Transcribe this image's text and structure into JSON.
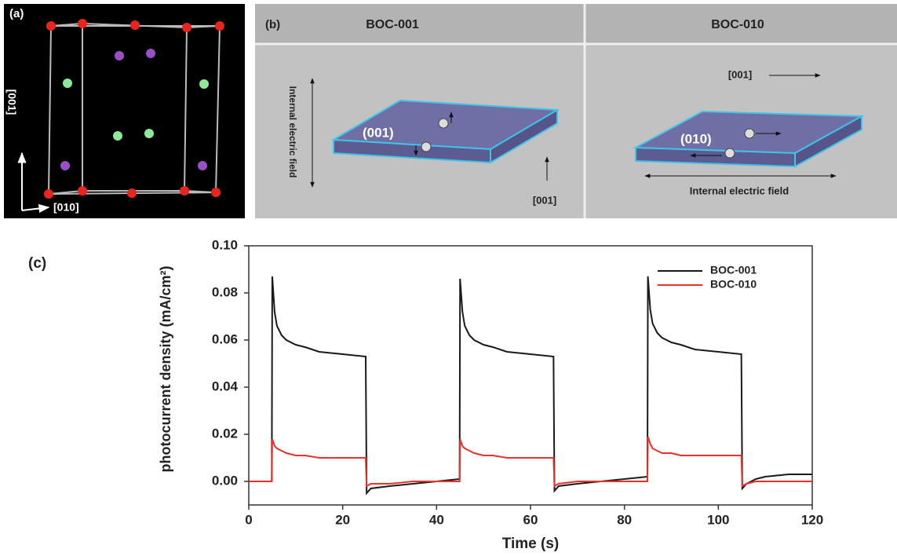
{
  "panel_a": {
    "label": "(a)",
    "axis_vertical": "[001]",
    "axis_horizontal": "[010]"
  },
  "panel_b": {
    "label": "(b)",
    "left_title": "BOC-001",
    "right_title": "BOC-010",
    "left_facet": "(001)",
    "left_field": "Internal electric field",
    "left_direction": "[001]",
    "right_facet": "(010)",
    "right_field": "Internal electric field",
    "right_direction": "[001]"
  },
  "chart_data": {
    "type": "line",
    "panel_label": "(c)",
    "x_label": "Time (s)",
    "y_label": "photocurrent density (mA/cm²)",
    "xlim": [
      0,
      120
    ],
    "xticks": [
      0,
      20,
      40,
      60,
      80,
      100,
      120
    ],
    "ylim": [
      -0.01,
      0.1
    ],
    "yticks": [
      {
        "value": 0,
        "label": "0.00"
      },
      0.02,
      0.04,
      0.06,
      0.08,
      {
        "value": 0.1,
        "label": "0.10"
      }
    ],
    "legend": "upper right",
    "x": [
      0,
      4.9,
      5,
      5.5,
      6,
      7,
      8,
      10,
      12,
      15,
      20,
      24.9,
      25.1,
      26,
      30,
      35,
      40,
      44.9,
      45,
      45.5,
      46,
      47,
      48,
      50,
      52,
      55,
      60,
      64.9,
      65.1,
      66,
      70,
      75,
      80,
      84.9,
      85,
      85.5,
      86,
      87,
      88,
      90,
      92,
      95,
      100,
      104.9,
      105.1,
      106,
      108,
      110,
      115,
      120
    ],
    "series": [
      {
        "name": "BOC-001",
        "color": "#1a1a1a",
        "values": [
          0,
          0,
          0.087,
          0.072,
          0.066,
          0.062,
          0.06,
          0.058,
          0.057,
          0.055,
          0.054,
          0.053,
          -0.005,
          -0.003,
          -0.002,
          -0.001,
          0.0,
          0.001,
          0.086,
          0.072,
          0.066,
          0.062,
          0.06,
          0.058,
          0.057,
          0.055,
          0.054,
          0.053,
          -0.004,
          -0.002,
          -0.001,
          0.0,
          0.001,
          0.002,
          0.087,
          0.073,
          0.067,
          0.063,
          0.061,
          0.059,
          0.058,
          0.056,
          0.055,
          0.054,
          -0.003,
          -0.001,
          0.001,
          0.002,
          0.003,
          0.003
        ]
      },
      {
        "name": "BOC-010",
        "color": "#e8312a",
        "values": [
          0,
          0,
          0.018,
          0.015,
          0.014,
          0.013,
          0.012,
          0.011,
          0.011,
          0.01,
          0.01,
          0.01,
          -0.002,
          -0.001,
          -0.001,
          0.0,
          0.0,
          0.0,
          0.018,
          0.015,
          0.014,
          0.013,
          0.012,
          0.011,
          0.011,
          0.01,
          0.01,
          0.01,
          -0.002,
          -0.001,
          0.0,
          0.0,
          0.0,
          0.0,
          0.019,
          0.016,
          0.014,
          0.013,
          0.012,
          0.012,
          0.011,
          0.011,
          0.011,
          0.011,
          -0.002,
          -0.001,
          0.0,
          0.0,
          0.0,
          0.0
        ]
      }
    ]
  }
}
